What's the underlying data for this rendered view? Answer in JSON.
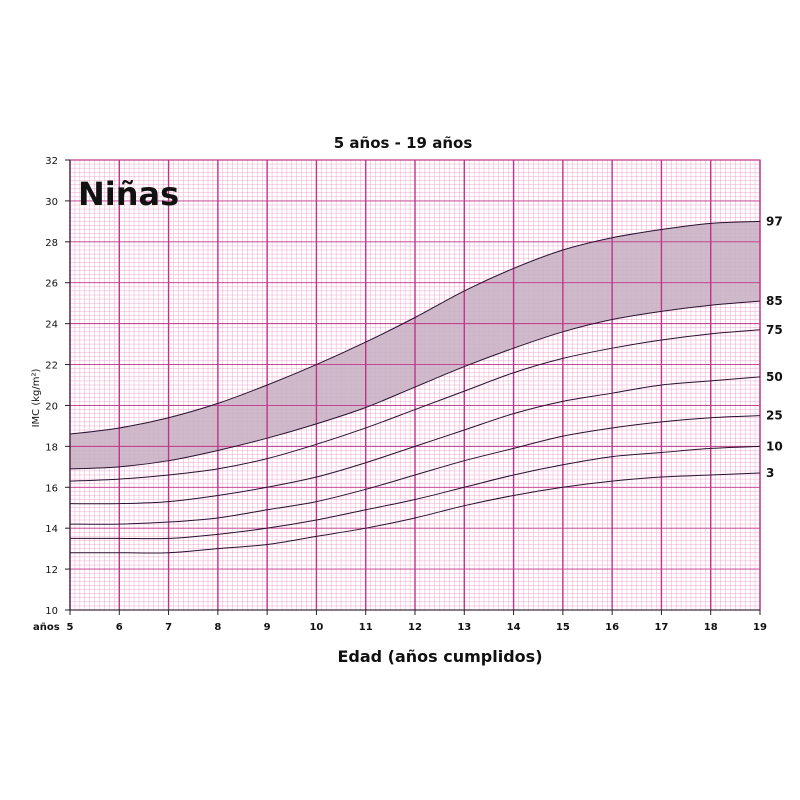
{
  "chart_data": {
    "type": "line",
    "title": "5 años - 19 años",
    "subtitle": "Niñas",
    "xlabel": "Edad (años cumplidos)",
    "xunit": "años",
    "ylabel": "IMC (kg/m²)",
    "xlim": [
      5,
      19
    ],
    "ylim": [
      10,
      32
    ],
    "x_ticks": [
      5,
      6,
      7,
      8,
      9,
      10,
      11,
      12,
      13,
      14,
      15,
      16,
      17,
      18,
      19
    ],
    "y_ticks": [
      10,
      12,
      14,
      16,
      18,
      20,
      22,
      24,
      26,
      28,
      30,
      32
    ],
    "grid": true,
    "legend": "right",
    "shaded_band": [
      "85",
      "97"
    ],
    "colors": {
      "grid_minor": "#f0a8cf",
      "grid_major": "#c2338a",
      "band_fill": "#c9b2c4",
      "line": "#2a1030"
    },
    "x": [
      5,
      6,
      7,
      8,
      9,
      10,
      11,
      12,
      13,
      14,
      15,
      16,
      17,
      18,
      19
    ],
    "series": [
      {
        "name": "97",
        "values": [
          18.6,
          18.9,
          19.4,
          20.1,
          21.0,
          22.0,
          23.1,
          24.3,
          25.6,
          26.7,
          27.6,
          28.2,
          28.6,
          28.9,
          29.0
        ]
      },
      {
        "name": "85",
        "values": [
          16.9,
          17.0,
          17.3,
          17.8,
          18.4,
          19.1,
          19.9,
          20.9,
          21.9,
          22.8,
          23.6,
          24.2,
          24.6,
          24.9,
          25.1
        ]
      },
      {
        "name": "75",
        "values": [
          16.3,
          16.4,
          16.6,
          16.9,
          17.4,
          18.1,
          18.9,
          19.8,
          20.7,
          21.6,
          22.3,
          22.8,
          23.2,
          23.5,
          23.7
        ]
      },
      {
        "name": "50",
        "values": [
          15.2,
          15.2,
          15.3,
          15.6,
          16.0,
          16.5,
          17.2,
          18.0,
          18.8,
          19.6,
          20.2,
          20.6,
          21.0,
          21.2,
          21.4
        ]
      },
      {
        "name": "25",
        "values": [
          14.2,
          14.2,
          14.3,
          14.5,
          14.9,
          15.3,
          15.9,
          16.6,
          17.3,
          17.9,
          18.5,
          18.9,
          19.2,
          19.4,
          19.5
        ]
      },
      {
        "name": "10",
        "values": [
          13.5,
          13.5,
          13.5,
          13.7,
          14.0,
          14.4,
          14.9,
          15.4,
          16.0,
          16.6,
          17.1,
          17.5,
          17.7,
          17.9,
          18.0
        ]
      },
      {
        "name": "3",
        "values": [
          12.8,
          12.8,
          12.8,
          13.0,
          13.2,
          13.6,
          14.0,
          14.5,
          15.1,
          15.6,
          16.0,
          16.3,
          16.5,
          16.6,
          16.7
        ]
      }
    ]
  }
}
